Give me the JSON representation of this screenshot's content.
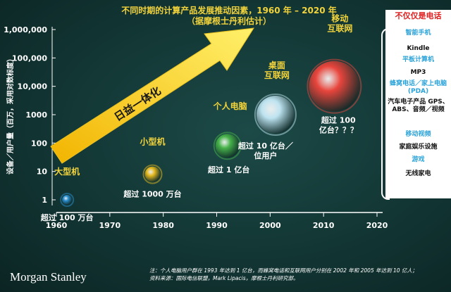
{
  "title_line1": "不同时期的计算产品发展推动因素，1960 年 – 2020 年",
  "title_line2": "（据摩根士丹利估计）",
  "arrow_label": "日益一体化",
  "panel": {
    "heading": "不仅仅是电话",
    "items": [
      {
        "text": "智能手机",
        "color": "#2aa3d9"
      },
      {
        "text": "Kindle",
        "color": "#111111"
      },
      {
        "text": "平板计算机",
        "color": "#2aa3d9"
      },
      {
        "text": "MP3",
        "color": "#111111"
      },
      {
        "text": "蜂窝电话／家上电脑 (PDA)",
        "color": "#2aa3d9"
      },
      {
        "text": "汽车电子产品 GPS、ABS、音频／视频",
        "color": "#111111"
      },
      {
        "text": "移动视频",
        "color": "#2aa3d9"
      },
      {
        "text": "家庭娱乐设施",
        "color": "#111111"
      },
      {
        "text": "游戏",
        "color": "#2aa3d9"
      },
      {
        "text": "无线家电",
        "color": "#111111"
      }
    ]
  },
  "footnote_line1": "注：个人电脑用户群在 1993 年达到 1 亿台，而蜂窝电话和互联网用户分别在 2002 年和 2005 年达到 10 亿人；",
  "footnote_line2": "资料来源：国际电信联盟，Mark Lipacis，摩根士丹利研究部。",
  "brand": "Morgan Stanley",
  "chart_data": {
    "type": "scatter",
    "title": "不同时期的计算产品发展推动因素，1960 年 – 2020 年",
    "subtitle": "（据摩根士丹利估计）",
    "xlabel": "",
    "ylabel": "设备／用户量（百万，采用对数标度）",
    "xlim": [
      1960,
      2020
    ],
    "ylim": [
      1,
      1000000
    ],
    "yscale": "log",
    "x_ticks": [
      "1960",
      "1970",
      "1980",
      "1990",
      "2000",
      "2010",
      "2020"
    ],
    "y_ticks": [
      "1",
      "10",
      "100",
      "1000",
      "10,000",
      "100,000",
      "1,000,000"
    ],
    "grid": false,
    "points": [
      {
        "name": "大型机",
        "x": 1962,
        "y": 1,
        "note": "超过 100 万台",
        "color": "#2a8fd0"
      },
      {
        "name": "小型机",
        "x": 1978,
        "y": 8,
        "note": "超过 1000 万台",
        "color": "#e6b91e"
      },
      {
        "name": "个人电脑",
        "x": 1992,
        "y": 80,
        "note": "超过 1 亿台",
        "color": "#47b34a"
      },
      {
        "name": "桌面\n互联网",
        "x": 2001,
        "y": 1000,
        "note": "超过 10 亿台／\n位用户",
        "color": "#bde3f0"
      },
      {
        "name": "移动\n互联网",
        "x": 2012,
        "y": 10000,
        "note": "超过 100\n亿台？？？",
        "color": "#e8453c"
      }
    ]
  }
}
